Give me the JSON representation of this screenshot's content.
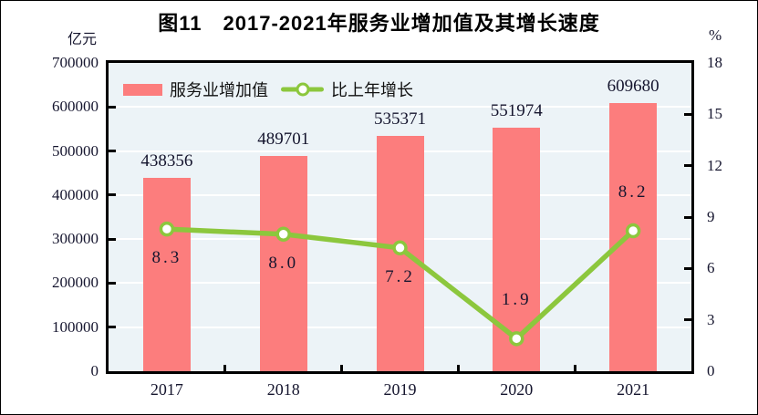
{
  "title": "图11　2017-2021年服务业增加值及其增长速度",
  "left_axis": {
    "unit": "亿元",
    "min": 0,
    "max": 700000,
    "step": 100000,
    "tick_labels": [
      "0",
      "100000",
      "200000",
      "300000",
      "400000",
      "500000",
      "600000",
      "700000"
    ]
  },
  "right_axis": {
    "unit": "%",
    "min": 0,
    "max": 18,
    "step": 3,
    "tick_labels": [
      "0",
      "3",
      "6",
      "9",
      "12",
      "15",
      "18"
    ]
  },
  "colors": {
    "bar": "#FC7D7D",
    "line": "#8CC73D",
    "marker_fill": "#FFFFFF",
    "plot_background": "#ECF3F7",
    "gridline": "#FFFFFF",
    "axis": "#000000",
    "text": "#15152E"
  },
  "chart_data": {
    "type": "combo",
    "title": "图11　2017-2021年服务业增加值及其增长速度",
    "categories": [
      "2017",
      "2018",
      "2019",
      "2020",
      "2021"
    ],
    "series": [
      {
        "name": "服务业增加值",
        "type": "bar",
        "axis": "left",
        "unit": "亿元",
        "color": "#FC7D7D",
        "values": [
          438356,
          489701,
          535371,
          551974,
          609680
        ],
        "labels": [
          "438356",
          "489701",
          "535371",
          "551974",
          "609680"
        ]
      },
      {
        "name": "比上年增长",
        "type": "line",
        "axis": "right",
        "unit": "%",
        "color": "#8CC73D",
        "values": [
          8.3,
          8.0,
          7.2,
          1.9,
          8.2
        ],
        "labels": [
          "8.3",
          "8.0",
          "7.2",
          "1.9",
          "8.2"
        ],
        "label_position": [
          "below",
          "below",
          "below",
          "above",
          "above"
        ]
      }
    ],
    "ylim_left": [
      0,
      700000
    ],
    "ylim_right": [
      0,
      18
    ],
    "grid": true,
    "legend_position": "top-left-inside"
  }
}
